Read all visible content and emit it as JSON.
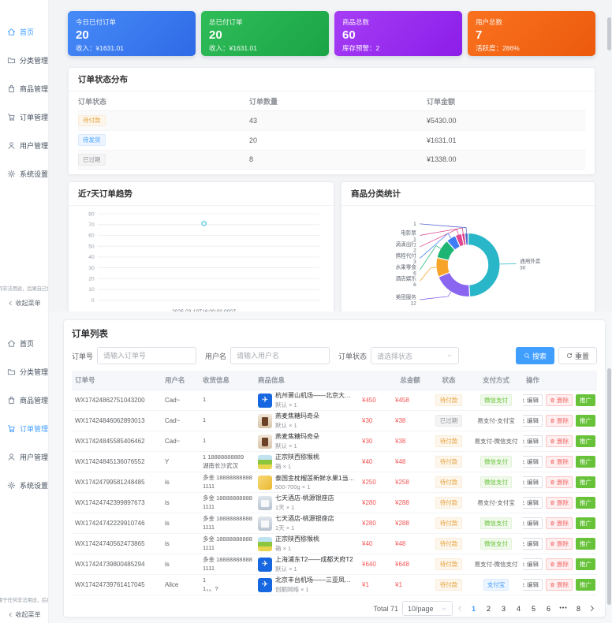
{
  "sidebar": {
    "collapse_label": "收起菜单",
    "disclaimer_dashboard": "何非法用途，后果自己负责。",
    "disclaimer_orders": "用于任何非法用途，后果自己",
    "menu_dashboard": [
      {
        "label": "首页",
        "icon": "home",
        "state": "active"
      },
      {
        "label": "分类管理",
        "icon": "folder",
        "state": ""
      },
      {
        "label": "商品管理",
        "icon": "bag",
        "state": ""
      },
      {
        "label": "订单管理",
        "icon": "cart",
        "state": ""
      },
      {
        "label": "用户管理",
        "icon": "user",
        "state": ""
      },
      {
        "label": "系统设置",
        "icon": "gear",
        "state": ""
      }
    ],
    "menu_orders": [
      {
        "label": "首页",
        "icon": "home",
        "state": ""
      },
      {
        "label": "分类管理",
        "icon": "folder",
        "state": ""
      },
      {
        "label": "商品管理",
        "icon": "bag",
        "state": ""
      },
      {
        "label": "订单管理",
        "icon": "cart",
        "state": "active"
      },
      {
        "label": "用户管理",
        "icon": "user",
        "state": ""
      },
      {
        "label": "系统设置",
        "icon": "gear",
        "state": ""
      }
    ]
  },
  "dashboard": {
    "stat_cards": [
      {
        "title": "今日已付订单",
        "value": "20",
        "subtitle": "收入：¥1631.01",
        "color_from": "#478bf8",
        "color_to": "#2e6ae6"
      },
      {
        "title": "总已付订单",
        "value": "20",
        "subtitle": "收入：¥1631.01",
        "color_from": "#2fbd58",
        "color_to": "#1ba447"
      },
      {
        "title": "商品总数",
        "value": "60",
        "subtitle": "库存预警：2",
        "color_from": "#a63ef5",
        "color_to": "#8b1de8"
      },
      {
        "title": "用户总数",
        "value": "7",
        "subtitle": "活跃度：286%",
        "color_from": "#f9721f",
        "color_to": "#ec5a0d"
      }
    ],
    "status_card": {
      "title": "订单状态分布",
      "columns": [
        "订单状态",
        "订单数量",
        "订单金额"
      ],
      "rows": [
        {
          "status": "待付款",
          "status_type": "warning",
          "count": "43",
          "amount": "¥5430.00"
        },
        {
          "status": "待发货",
          "status_type": "primary",
          "count": "20",
          "amount": "¥1631.01"
        },
        {
          "status": "已过期",
          "status_type": "info",
          "count": "8",
          "amount": "¥1338.00"
        }
      ]
    },
    "trend_card": {
      "title": "近7天订单趋势"
    },
    "category_card": {
      "title": "商品分类统计"
    }
  },
  "chart_data": [
    {
      "type": "line",
      "title": "近7天订单趋势",
      "x": [
        "2025-03-19T16:00:00.000Z"
      ],
      "series": [
        {
          "name": "订单数",
          "values": [
            71
          ]
        }
      ],
      "ylim": [
        0,
        80
      ],
      "ytick_step": 10,
      "grid": true,
      "legend": false,
      "point_color": "#5ec9e5"
    },
    {
      "type": "pie",
      "title": "商品分类统计",
      "slices": [
        {
          "name": "通用外卖",
          "value": 30,
          "color": "#29b6c8"
        },
        {
          "name": "美团服务",
          "value": 12,
          "color": "#8a66f0"
        },
        {
          "name": "酒店娱乐",
          "value": 6,
          "color": "#f7a42a"
        },
        {
          "name": "水果零食",
          "value": 6,
          "color": "#1cb573"
        },
        {
          "name": "携程代付",
          "value": 3,
          "color": "#3f7df6"
        },
        {
          "name": "滴滴出行",
          "value": 2,
          "color": "#e2468f"
        },
        {
          "name": "电影票",
          "value": 1,
          "color": "#d9418c"
        },
        {
          "name": "",
          "value": 1,
          "color": "#5266cc"
        }
      ]
    }
  ],
  "orders": {
    "title": "订单列表",
    "search": {
      "order_no_label": "订单号",
      "order_no_placeholder": "请输入订单号",
      "user_label": "用户名",
      "user_placeholder": "请输入用户名",
      "status_label": "订单状态",
      "status_placeholder": "请选择状态",
      "search_button": "搜索",
      "reset_button": "重置"
    },
    "columns": [
      "订单号",
      "用户名",
      "收货信息",
      "商品信息",
      "",
      "总金额",
      "状态",
      "支付方式",
      "操作"
    ],
    "buttons": {
      "edit": "编辑",
      "delete": "删除",
      "promote": "推广"
    },
    "rows": [
      {
        "order_no": "WX17424862751043200",
        "user": "Cad~",
        "ship1": "1",
        "ship2": "",
        "thumb": "flight",
        "product": "杭州萧山机场——北京大兴机场",
        "spec": "默认 × 1",
        "price": "¥450",
        "total": "¥458",
        "status": "待付款",
        "status_type": "warning",
        "payment": "微信支付",
        "pay_style": "green-tag"
      },
      {
        "order_no": "WX17424846062893013",
        "user": "Cad~",
        "ship1": "1",
        "ship2": "",
        "thumb": "coffee",
        "product": "燕麦焦糖玛奇朵",
        "spec": "默认 × 1",
        "price": "¥30",
        "total": "¥38",
        "status": "已过期",
        "status_type": "info",
        "payment": "易支付-支付宝",
        "pay_style": "plain"
      },
      {
        "order_no": "WX17424845585406462",
        "user": "Cad~",
        "ship1": "1",
        "ship2": "",
        "thumb": "coffee",
        "product": "燕麦焦糖玛奇朵",
        "spec": "默认 × 1",
        "price": "¥30",
        "total": "¥38",
        "status": "待付款",
        "status_type": "warning",
        "payment": "易支付-微信支付",
        "pay_style": "plain"
      },
      {
        "order_no": "WX17424845136076552",
        "user": "Y",
        "ship1": "1 18888888889",
        "ship2": "湖南长沙武汉",
        "thumb": "kiwi",
        "product": "正宗陕西猕猴桃",
        "spec": "箱 × 1",
        "price": "¥40",
        "total": "¥48",
        "status": "待付款",
        "status_type": "warning",
        "payment": "微信支付",
        "pay_style": "green-tag"
      },
      {
        "order_no": "WX17424799581248485",
        "user": "is",
        "ship1": "多金 18888888888",
        "ship2": "1111",
        "thumb": "durian",
        "product": "泰国金枕榴莲新鲜水果1当季进口整果…",
        "spec": "500-700g × 1",
        "price": "¥250",
        "total": "¥258",
        "status": "待付款",
        "status_type": "warning",
        "payment": "微信支付",
        "pay_style": "green-tag"
      },
      {
        "order_no": "WX17424742399897673",
        "user": "is",
        "ship1": "多金 18888888888",
        "ship2": "1111",
        "thumb": "hotel",
        "product": "七天酒店-桃源银座店",
        "spec": "1天 × 1",
        "price": "¥280",
        "total": "¥288",
        "status": "待付款",
        "status_type": "warning",
        "payment": "易支付-支付宝",
        "pay_style": "plain"
      },
      {
        "order_no": "WX17424742229910746",
        "user": "is",
        "ship1": "多金 18888888888",
        "ship2": "1111",
        "thumb": "hotel",
        "product": "七天酒店-桃源银座店",
        "spec": "1天 × 1",
        "price": "¥280",
        "total": "¥288",
        "status": "待付款",
        "status_type": "warning",
        "payment": "微信支付",
        "pay_style": "green-tag"
      },
      {
        "order_no": "WX17424740562473865",
        "user": "is",
        "ship1": "多金 18888888888",
        "ship2": "1111",
        "thumb": "kiwi",
        "product": "正宗陕西猕猴桃",
        "spec": "箱 × 1",
        "price": "¥40",
        "total": "¥48",
        "status": "待付款",
        "status_type": "warning",
        "payment": "微信支付",
        "pay_style": "green-tag"
      },
      {
        "order_no": "WX17424739800485294",
        "user": "is",
        "ship1": "多金 18888888888",
        "ship2": "1111",
        "thumb": "flight",
        "product": "上海浦东T2——成都天府T2",
        "spec": "默认 × 1",
        "price": "¥640",
        "total": "¥648",
        "status": "待付款",
        "status_type": "warning",
        "payment": "易支付-微信支付",
        "pay_style": "plain"
      },
      {
        "order_no": "WX17424739761417045",
        "user": "Alice",
        "ship1": "1",
        "ship2": "1，。?",
        "thumb": "flight",
        "product": "北京丰台机场——三亚凤凰国际机场",
        "spec": "创额网络 × 1",
        "price": "¥1",
        "total": "¥1",
        "status": "待付款",
        "status_type": "warning",
        "payment": "支付宝",
        "pay_style": "blue-tag"
      }
    ],
    "pagination": {
      "total": "Total 71",
      "page_size": "10/page",
      "pages": [
        {
          "label": "1",
          "state": "active"
        },
        {
          "label": "2",
          "state": ""
        },
        {
          "label": "3",
          "state": ""
        },
        {
          "label": "4",
          "state": ""
        },
        {
          "label": "5",
          "state": ""
        },
        {
          "label": "6",
          "state": ""
        },
        {
          "label": "•••",
          "state": "ellipsis"
        },
        {
          "label": "8",
          "state": ""
        }
      ]
    }
  }
}
